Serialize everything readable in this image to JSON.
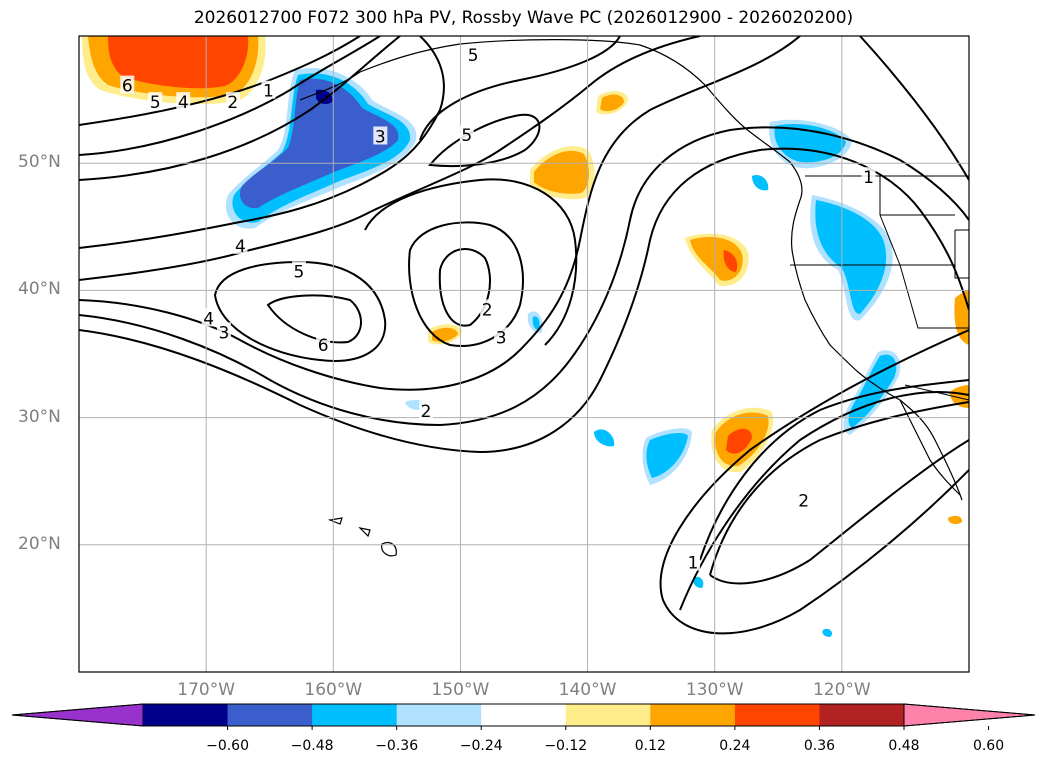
{
  "title": "2026012700 F072 300 hPa PV, Rossby Wave PC (2026012900 - 2026020200)",
  "map": {
    "lon_range": [
      -180,
      -110
    ],
    "lat_range": [
      10,
      60
    ],
    "lat_labels": [
      {
        "lat": 50,
        "text": "50°N"
      },
      {
        "lat": 40,
        "text": "40°N"
      },
      {
        "lat": 30,
        "text": "30°N"
      },
      {
        "lat": 20,
        "text": "20°N"
      }
    ],
    "lon_labels": [
      {
        "lon": -170,
        "text": "170°W"
      },
      {
        "lon": -160,
        "text": "160°W"
      },
      {
        "lon": -150,
        "text": "150°W"
      },
      {
        "lon": -140,
        "text": "140°W"
      },
      {
        "lon": -130,
        "text": "130°W"
      },
      {
        "lon": -120,
        "text": "120°W"
      }
    ],
    "gridlines": true,
    "contour_labels": [
      {
        "text": "5",
        "lon": -149,
        "lat": 58.5
      },
      {
        "text": "5",
        "lon": -149.5,
        "lat": 52.2
      },
      {
        "text": "1",
        "lon": -165.1,
        "lat": 55.7
      },
      {
        "text": "2",
        "lon": -167.9,
        "lat": 54.8
      },
      {
        "text": "5",
        "lon": -174,
        "lat": 54.8
      },
      {
        "text": "4",
        "lon": -171.8,
        "lat": 54.8
      },
      {
        "text": "6",
        "lon": -176.2,
        "lat": 56.1
      },
      {
        "text": "3",
        "lon": -156.3,
        "lat": 52.1
      },
      {
        "text": "4",
        "lon": -167.3,
        "lat": 43.5
      },
      {
        "text": "5",
        "lon": -162.7,
        "lat": 41.5
      },
      {
        "text": "6",
        "lon": -160.8,
        "lat": 35.7
      },
      {
        "text": "4",
        "lon": -169.8,
        "lat": 37.8
      },
      {
        "text": "3",
        "lon": -168.6,
        "lat": 36.7
      },
      {
        "text": "2",
        "lon": -152.7,
        "lat": 30.5
      },
      {
        "text": "2",
        "lon": -147.9,
        "lat": 38.5
      },
      {
        "text": "3",
        "lon": -146.8,
        "lat": 36.3
      },
      {
        "text": "1",
        "lon": -117.9,
        "lat": 48.9
      },
      {
        "text": "1",
        "lon": -131.7,
        "lat": 18.6
      },
      {
        "text": "2",
        "lon": -123.0,
        "lat": 23.5
      }
    ]
  },
  "colorbar": {
    "colors": [
      "#9932cc",
      "#00008b",
      "#3a5fcd",
      "#00bfff",
      "#b0e2ff",
      "#ffffff",
      "#ffec8b",
      "#ffa500",
      "#ff4500",
      "#b22222",
      "#ff82ab"
    ],
    "ticks": [
      "−0.60",
      "−0.48",
      "−0.36",
      "−0.24",
      "−0.12",
      "0.12",
      "0.24",
      "0.36",
      "0.48",
      "0.60"
    ]
  }
}
